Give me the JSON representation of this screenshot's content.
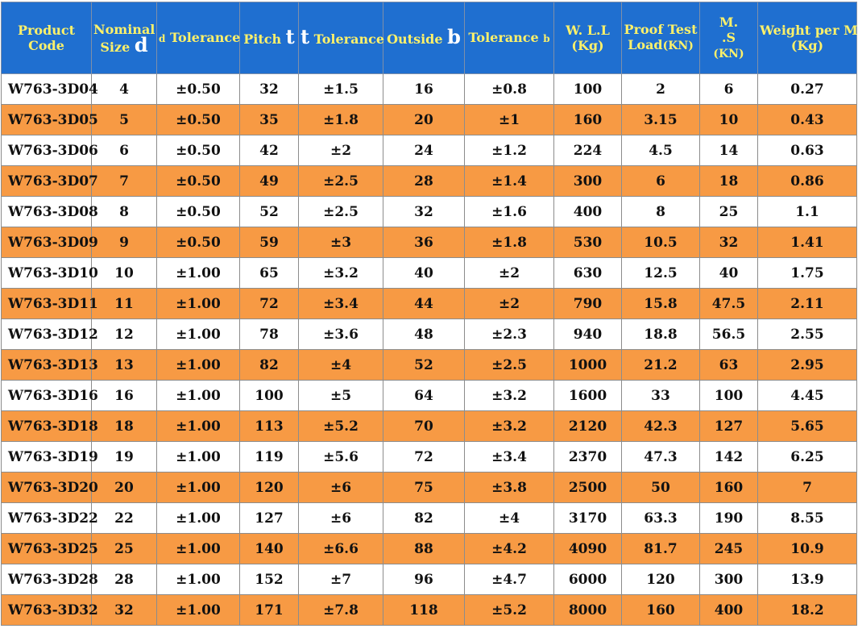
{
  "headers": {
    "code": [
      "Product",
      "Code"
    ],
    "nominal": [
      "Nominal",
      "Size",
      "d"
    ],
    "d_tol": [
      "d",
      "Tolerance"
    ],
    "pitch": [
      "Pitch",
      "t"
    ],
    "t_tol": [
      "t",
      "Tolerance"
    ],
    "outside": [
      "Outside",
      "b"
    ],
    "b_tol": [
      "Tolerance",
      "b"
    ],
    "wll": [
      "W. L.L",
      "(Kg)"
    ],
    "proof": [
      "Proof Test",
      "Load",
      "(KN)"
    ],
    "ms": [
      "M.",
      ".S",
      "(KN)"
    ],
    "weight": [
      "Weight per M",
      "(Kg)"
    ]
  },
  "rows": [
    [
      "W763-3D04",
      "4",
      "±0.50",
      "32",
      "±1.5",
      "16",
      "±0.8",
      "100",
      "2",
      "6",
      "0.27"
    ],
    [
      "W763-3D05",
      "5",
      "±0.50",
      "35",
      "±1.8",
      "20",
      "±1",
      "160",
      "3.15",
      "10",
      "0.43"
    ],
    [
      "W763-3D06",
      "6",
      "±0.50",
      "42",
      "±2",
      "24",
      "±1.2",
      "224",
      "4.5",
      "14",
      "0.63"
    ],
    [
      "W763-3D07",
      "7",
      "±0.50",
      "49",
      "±2.5",
      "28",
      "±1.4",
      "300",
      "6",
      "18",
      "0.86"
    ],
    [
      "W763-3D08",
      "8",
      "±0.50",
      "52",
      "±2.5",
      "32",
      "±1.6",
      "400",
      "8",
      "25",
      "1.1"
    ],
    [
      "W763-3D09",
      "9",
      "±0.50",
      "59",
      "±3",
      "36",
      "±1.8",
      "530",
      "10.5",
      "32",
      "1.41"
    ],
    [
      "W763-3D10",
      "10",
      "±1.00",
      "65",
      "±3.2",
      "40",
      "±2",
      "630",
      "12.5",
      "40",
      "1.75"
    ],
    [
      "W763-3D11",
      "11",
      "±1.00",
      "72",
      "±3.4",
      "44",
      "±2",
      "790",
      "15.8",
      "47.5",
      "2.11"
    ],
    [
      "W763-3D12",
      "12",
      "±1.00",
      "78",
      "±3.6",
      "48",
      "±2.3",
      "940",
      "18.8",
      "56.5",
      "2.55"
    ],
    [
      "W763-3D13",
      "13",
      "±1.00",
      "82",
      "±4",
      "52",
      "±2.5",
      "1000",
      "21.2",
      "63",
      "2.95"
    ],
    [
      "W763-3D16",
      "16",
      "±1.00",
      "100",
      "±5",
      "64",
      "±3.2",
      "1600",
      "33",
      "100",
      "4.45"
    ],
    [
      "W763-3D18",
      "18",
      "±1.00",
      "113",
      "±5.2",
      "70",
      "±3.2",
      "2120",
      "42.3",
      "127",
      "5.65"
    ],
    [
      "W763-3D19",
      "19",
      "±1.00",
      "119",
      "±5.6",
      "72",
      "±3.4",
      "2370",
      "47.3",
      "142",
      "6.25"
    ],
    [
      "W763-3D20",
      "20",
      "±1.00",
      "120",
      "±6",
      "75",
      "±3.8",
      "2500",
      "50",
      "160",
      "7"
    ],
    [
      "W763-3D22",
      "22",
      "±1.00",
      "127",
      "±6",
      "82",
      "±4",
      "3170",
      "63.3",
      "190",
      "8.55"
    ],
    [
      "W763-3D25",
      "25",
      "±1.00",
      "140",
      "±6.6",
      "88",
      "±4.2",
      "4090",
      "81.7",
      "245",
      "10.9"
    ],
    [
      "W763-3D28",
      "28",
      "±1.00",
      "152",
      "±7",
      "96",
      "±4.7",
      "6000",
      "120",
      "300",
      "13.9"
    ],
    [
      "W763-3D32",
      "32",
      "±1.00",
      "171",
      "±7.8",
      "118",
      "±5.2",
      "8000",
      "160",
      "400",
      "18.2"
    ]
  ],
  "colors": {
    "header_bg": "#1f6fd0",
    "header_text": "#fdf16a",
    "alt_row_bg": "#f79a44",
    "plain_row_bg": "#ffffff"
  }
}
